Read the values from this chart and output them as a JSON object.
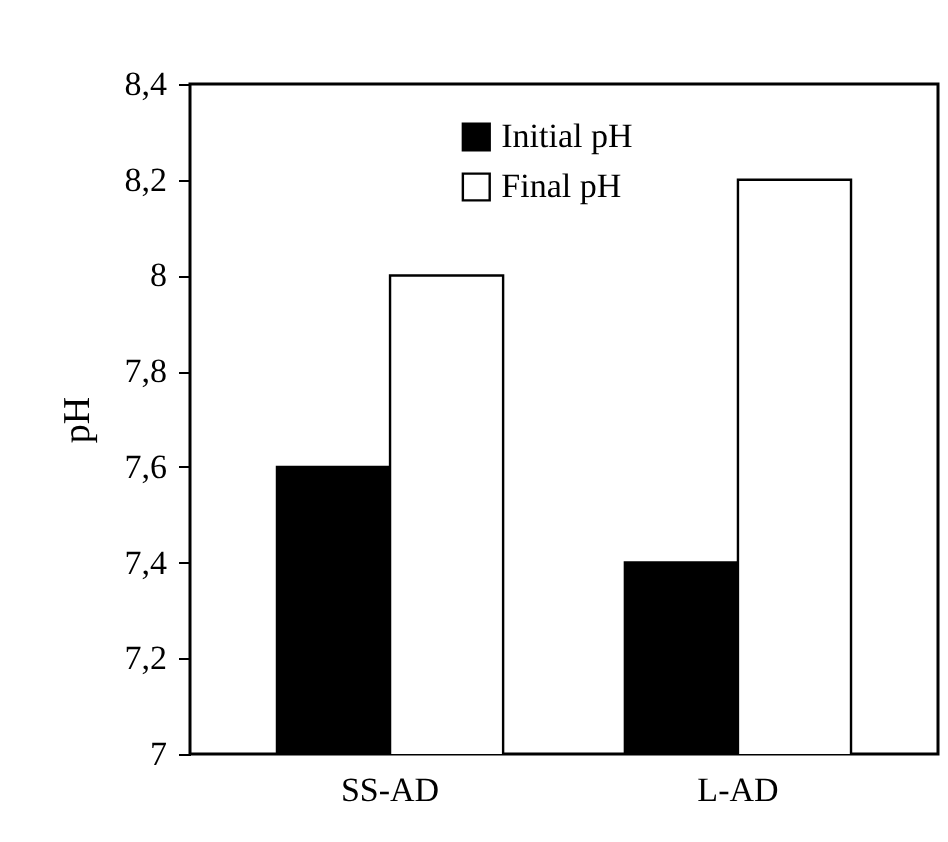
{
  "chart_data": {
    "type": "bar",
    "ylabel": "pH",
    "categories": [
      "SS-AD",
      "L-AD"
    ],
    "series": [
      {
        "name": "Initial pH",
        "color": "#000000",
        "values": [
          7.6,
          7.4
        ]
      },
      {
        "name": "Final pH",
        "color": "#ffffff",
        "values": [
          8.0,
          8.2
        ]
      }
    ],
    "ylim": [
      7,
      8.4
    ],
    "yticks": [
      7,
      {
        "value": 7.2,
        "label": "7,2"
      },
      {
        "value": 7.4,
        "label": "7,4"
      },
      {
        "value": 7.6,
        "label": "7,6"
      },
      {
        "value": 7.8,
        "label": "7,8"
      },
      8,
      {
        "value": 8.2,
        "label": "8,2"
      },
      {
        "value": 8.4,
        "label": "8,4"
      }
    ],
    "grid": false,
    "legend": "top"
  }
}
